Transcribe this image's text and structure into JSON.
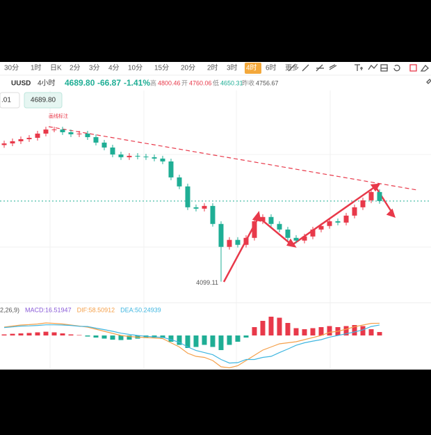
{
  "toolbar": {
    "intervals": [
      "30分",
      "1时",
      "日K",
      "2分",
      "3分",
      "4分",
      "10分",
      "15分",
      "20分",
      "2时",
      "3时",
      "4时",
      "6时"
    ],
    "active_index": 11,
    "more": "更多"
  },
  "symbol": {
    "name": "UUSD",
    "timeframe": "4小时",
    "price": "4689.80",
    "change": "-66.87",
    "change_pct": "-1.41%",
    "high_label": "高",
    "high": "4800.46",
    "open_label": "开",
    "open": "4760.06",
    "low_label": "低",
    "low": "4650.31",
    "close_label": "昨收",
    "close": "4756.67"
  },
  "price_box": {
    "left": ".01"
  },
  "annotation": "画线标注",
  "chart_data": [
    {
      "type": "candlestick",
      "ylim": [
        3970,
        5500
      ],
      "up_color": "#e8394a",
      "down_color": "#1fae95",
      "current_price": {
        "value": 4689.8,
        "label": "4689.80"
      },
      "open": [
        5100,
        5112,
        5128,
        5143,
        5153,
        5184,
        5214,
        5214,
        5194,
        5179,
        5184,
        5158,
        5118,
        5082,
        5031,
        5011,
        5021,
        5016,
        5011,
        5001,
        4980,
        4863,
        4797,
        4644,
        4634,
        4654,
        4522,
        4354,
        4405,
        4369,
        4420,
        4542,
        4573,
        4522,
        4481,
        4420,
        4400,
        4430,
        4481,
        4507,
        4542,
        4532,
        4583,
        4644,
        4695,
        4756
      ],
      "high": [
        5132,
        5148,
        5163,
        5173,
        5204,
        5234,
        5234,
        5234,
        5214,
        5204,
        5204,
        5178,
        5138,
        5102,
        5051,
        5041,
        5041,
        5036,
        5031,
        5021,
        5000,
        4883,
        4817,
        4664,
        4674,
        4674,
        4542,
        4425,
        4425,
        4440,
        4562,
        4593,
        4593,
        4542,
        4501,
        4440,
        4450,
        4501,
        4527,
        4562,
        4562,
        4603,
        4664,
        4715,
        4776,
        4776
      ],
      "low": [
        5080,
        5092,
        5108,
        5123,
        5133,
        5164,
        5194,
        5174,
        5159,
        5159,
        5138,
        5098,
        5062,
        5011,
        4991,
        4991,
        4996,
        4991,
        4981,
        4960,
        4843,
        4777,
        4624,
        4614,
        4614,
        4502,
        4099.11,
        4334,
        4349,
        4349,
        4400,
        4522,
        4502,
        4461,
        4400,
        4380,
        4380,
        4410,
        4461,
        4487,
        4512,
        4512,
        4563,
        4624,
        4675,
        4670
      ],
      "close": [
        5112,
        5128,
        5143,
        5153,
        5184,
        5214,
        5214,
        5194,
        5179,
        5184,
        5158,
        5118,
        5082,
        5031,
        5011,
        5021,
        5016,
        5011,
        5001,
        4980,
        4863,
        4797,
        4644,
        4634,
        4654,
        4522,
        4354,
        4405,
        4369,
        4420,
        4542,
        4573,
        4522,
        4481,
        4420,
        4400,
        4430,
        4481,
        4507,
        4542,
        4532,
        4583,
        4644,
        4695,
        4756,
        4689.8
      ],
      "low_marker_index": 26
    },
    {
      "type": "macd",
      "ylim": [
        -160,
        140
      ],
      "header": [
        "2,26,9)",
        "MACD:16.51947",
        "DIF:58.50912",
        "DEA:50.24939"
      ],
      "up_color": "#e8394a",
      "down_color": "#1fae95",
      "histogram": [
        5,
        8,
        10,
        12,
        15,
        18,
        15,
        10,
        5,
        2,
        -5,
        -10,
        -15,
        -20,
        -22,
        -20,
        -15,
        -12,
        -10,
        -12,
        -30,
        -45,
        -60,
        -55,
        -45,
        -55,
        -70,
        -45,
        -30,
        -10,
        40,
        70,
        90,
        85,
        60,
        35,
        30,
        35,
        40,
        45,
        40,
        45,
        50,
        45,
        30,
        16.51947
      ],
      "series": [
        {
          "name": "DIF",
          "color": "#f5a04a",
          "values": [
            40,
            45,
            50,
            52,
            55,
            60,
            58,
            55,
            50,
            45,
            40,
            30,
            20,
            10,
            0,
            -5,
            -8,
            -10,
            -12,
            -15,
            -35,
            -55,
            -85,
            -100,
            -105,
            -120,
            -150,
            -155,
            -145,
            -120,
            -95,
            -70,
            -55,
            -40,
            -35,
            -30,
            -20,
            -10,
            0,
            15,
            20,
            30,
            42,
            50,
            58,
            58.50912
          ]
        },
        {
          "name": "DEA",
          "color": "#3fb6e0",
          "values": [
            38,
            41,
            45,
            46,
            48,
            51,
            51,
            50,
            48,
            44,
            43,
            35,
            28,
            20,
            11,
            5,
            0,
            -4,
            -7,
            -9,
            -20,
            -33,
            -55,
            -72,
            -82,
            -92,
            -115,
            -132,
            -130,
            -115,
            -115,
            -105,
            -100,
            -82,
            -65,
            -47,
            -35,
            -27,
            -20,
            -8,
            0,
            8,
            17,
            27,
            43,
            50.24939
          ]
        }
      ]
    }
  ]
}
